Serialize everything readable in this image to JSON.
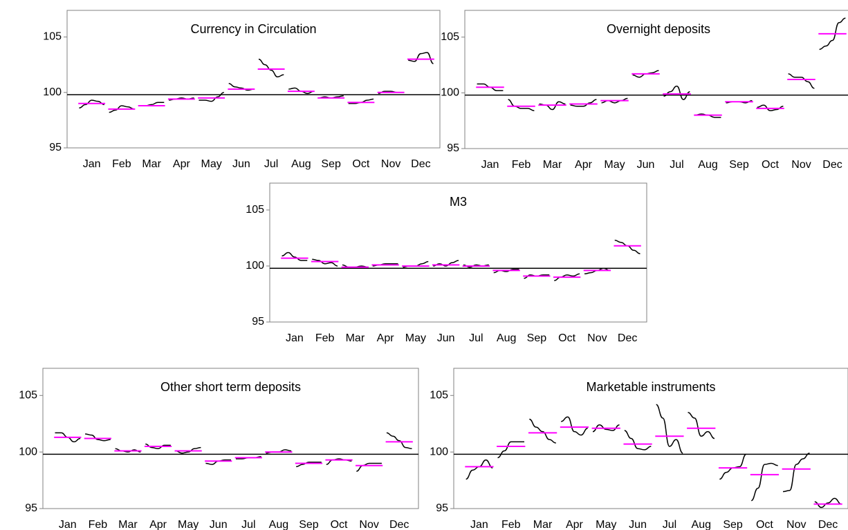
{
  "chart_data": [
    {
      "type": "line",
      "title": "Currency in Circulation",
      "ylim": [
        95,
        107.4
      ],
      "yticks": [
        95,
        100,
        105
      ],
      "reference_line": 99.8,
      "mean_color": "#ff00ff",
      "line_color": "#000000",
      "categories": [
        "Jan",
        "Feb",
        "Mar",
        "Apr",
        "May",
        "Jun",
        "Jul",
        "Aug",
        "Sep",
        "Oct",
        "Nov",
        "Dec"
      ],
      "mean_values": [
        99.0,
        98.5,
        98.8,
        99.4,
        99.5,
        100.3,
        102.1,
        100.1,
        99.5,
        99.1,
        100.0,
        103.0
      ],
      "monthly_values": [
        [
          98.6,
          98.9,
          99.3,
          99.2,
          98.9
        ],
        [
          98.2,
          98.4,
          98.8,
          98.7,
          98.5
        ],
        [
          98.8,
          98.8,
          98.9,
          99.1,
          99.1
        ],
        [
          99.3,
          99.4,
          99.5,
          99.4,
          99.5
        ],
        [
          99.3,
          99.3,
          99.2,
          99.6,
          100.0
        ],
        [
          100.8,
          100.5,
          100.4,
          100.2,
          100.3
        ],
        [
          103.0,
          102.5,
          102.0,
          101.4,
          101.6
        ],
        [
          100.3,
          100.4,
          100.1,
          99.9,
          100.1
        ],
        [
          99.5,
          99.6,
          99.5,
          99.6,
          99.7
        ],
        [
          99.0,
          99.0,
          99.1,
          99.3,
          99.4
        ],
        [
          99.9,
          100.1,
          100.1,
          100.0,
          100.0
        ],
        [
          102.9,
          102.8,
          103.5,
          103.6,
          102.6
        ]
      ]
    },
    {
      "type": "line",
      "title": "Overnight deposits",
      "ylim": [
        95,
        107.4
      ],
      "yticks": [
        95,
        100,
        105
      ],
      "reference_line": 99.8,
      "mean_color": "#ff00ff",
      "line_color": "#000000",
      "categories": [
        "Jan",
        "Feb",
        "Mar",
        "Apr",
        "May",
        "Jun",
        "Jul",
        "Aug",
        "Sep",
        "Oct",
        "Nov",
        "Dec"
      ],
      "mean_values": [
        100.5,
        98.8,
        98.9,
        99.0,
        99.3,
        101.7,
        99.9,
        98.0,
        99.2,
        98.6,
        101.2,
        105.3
      ],
      "monthly_values": [
        [
          100.8,
          100.8,
          100.5,
          100.2,
          100.2
        ],
        [
          99.4,
          98.8,
          98.6,
          98.6,
          98.4
        ],
        [
          99.0,
          98.9,
          98.5,
          99.2,
          99.0
        ],
        [
          98.9,
          98.8,
          98.8,
          99.1,
          99.4
        ],
        [
          99.1,
          99.3,
          99.1,
          99.3,
          99.5
        ],
        [
          101.6,
          101.4,
          101.7,
          101.8,
          102.0
        ],
        [
          99.7,
          100.1,
          100.6,
          99.4,
          100.1
        ],
        [
          98.0,
          98.1,
          98.0,
          97.8,
          97.8
        ],
        [
          99.1,
          99.2,
          99.2,
          99.1,
          99.3
        ],
        [
          98.7,
          98.9,
          98.4,
          98.5,
          98.8
        ],
        [
          101.7,
          101.4,
          101.4,
          101.0,
          100.4
        ],
        [
          103.9,
          104.2,
          104.7,
          106.3,
          106.7
        ]
      ]
    },
    {
      "type": "line",
      "title": "M3",
      "ylim": [
        95,
        107.4
      ],
      "yticks": [
        95,
        100,
        105
      ],
      "reference_line": 99.8,
      "mean_color": "#ff00ff",
      "line_color": "#000000",
      "categories": [
        "Jan",
        "Feb",
        "Mar",
        "Apr",
        "May",
        "Jun",
        "Jul",
        "Aug",
        "Sep",
        "Oct",
        "Nov",
        "Dec"
      ],
      "mean_values": [
        100.7,
        100.4,
        99.9,
        100.1,
        100.0,
        100.1,
        100.0,
        99.6,
        99.1,
        99.0,
        99.6,
        101.8
      ],
      "monthly_values": [
        [
          100.9,
          101.2,
          100.8,
          100.5,
          100.5
        ],
        [
          100.6,
          100.5,
          100.2,
          100.3,
          100.0
        ],
        [
          100.1,
          99.9,
          99.9,
          100.0,
          99.9
        ],
        [
          100.0,
          100.1,
          100.2,
          100.2,
          100.2
        ],
        [
          99.9,
          100.0,
          100.0,
          100.2,
          100.4
        ],
        [
          100.0,
          100.2,
          100.0,
          100.3,
          100.5
        ],
        [
          100.1,
          99.9,
          100.1,
          100.0,
          100.1
        ],
        [
          99.4,
          99.6,
          99.5,
          99.7,
          99.7
        ],
        [
          98.9,
          99.2,
          99.1,
          99.2,
          99.2
        ],
        [
          98.7,
          99.0,
          99.2,
          99.1,
          99.3
        ],
        [
          99.3,
          99.4,
          99.6,
          99.8,
          99.6
        ],
        [
          102.3,
          102.1,
          101.8,
          101.4,
          101.1
        ]
      ]
    },
    {
      "type": "line",
      "title": "Other short term deposits",
      "ylim": [
        95,
        107.4
      ],
      "yticks": [
        95,
        100,
        105
      ],
      "reference_line": 99.8,
      "mean_color": "#ff00ff",
      "line_color": "#000000",
      "categories": [
        "Jan",
        "Feb",
        "Mar",
        "Apr",
        "May",
        "Jun",
        "Jul",
        "Aug",
        "Sep",
        "Oct",
        "Nov",
        "Dec"
      ],
      "mean_values": [
        101.3,
        101.2,
        100.1,
        100.5,
        100.1,
        99.2,
        99.5,
        100.0,
        99.0,
        99.3,
        98.8,
        100.9
      ],
      "monthly_values": [
        [
          101.7,
          101.7,
          101.3,
          100.9,
          101.2
        ],
        [
          101.6,
          101.5,
          101.1,
          101.0,
          101.1
        ],
        [
          100.3,
          100.1,
          100.0,
          100.2,
          100.0
        ],
        [
          100.7,
          100.4,
          100.3,
          100.6,
          100.6
        ],
        [
          100.1,
          99.9,
          100.0,
          100.3,
          100.4
        ],
        [
          99.0,
          98.9,
          99.2,
          99.3,
          99.3
        ],
        [
          99.4,
          99.4,
          99.5,
          99.5,
          99.6
        ],
        [
          99.9,
          100.0,
          100.0,
          100.2,
          100.1
        ],
        [
          98.7,
          98.9,
          99.1,
          99.1,
          99.1
        ],
        [
          98.9,
          99.3,
          99.4,
          99.3,
          99.2
        ],
        [
          98.3,
          98.8,
          99.0,
          99.0,
          99.0
        ],
        [
          101.7,
          101.4,
          101.0,
          100.4,
          100.3
        ]
      ]
    },
    {
      "type": "line",
      "title": "Marketable instruments",
      "ylim": [
        95,
        107.4
      ],
      "yticks": [
        95,
        100,
        105
      ],
      "reference_line": 99.8,
      "mean_color": "#ff00ff",
      "line_color": "#000000",
      "categories": [
        "Jan",
        "Feb",
        "Mar",
        "Apr",
        "May",
        "Jun",
        "Jul",
        "Aug",
        "Sep",
        "Oct",
        "Nov",
        "Dec"
      ],
      "mean_values": [
        98.7,
        100.5,
        101.7,
        102.2,
        102.1,
        100.7,
        101.4,
        102.1,
        98.6,
        98.0,
        98.5,
        95.4
      ],
      "monthly_values": [
        [
          97.6,
          98.4,
          98.7,
          99.3,
          98.6
        ],
        [
          99.5,
          100.1,
          100.9,
          100.9,
          100.9
        ],
        [
          102.9,
          102.2,
          101.8,
          101.1,
          100.8
        ],
        [
          102.7,
          103.1,
          101.8,
          101.5,
          102.1
        ],
        [
          101.8,
          102.4,
          102.0,
          101.9,
          102.4
        ],
        [
          101.9,
          101.2,
          100.3,
          100.2,
          100.5
        ],
        [
          104.2,
          103.0,
          100.5,
          101.1,
          99.9
        ],
        [
          103.5,
          103.0,
          101.4,
          101.8,
          101.2
        ],
        [
          97.6,
          98.2,
          98.6,
          98.7,
          99.8
        ],
        [
          95.7,
          96.8,
          98.9,
          99.0,
          98.8
        ],
        [
          96.5,
          96.6,
          98.9,
          99.4,
          99.9
        ],
        [
          95.6,
          95.1,
          95.5,
          95.9,
          95.4
        ]
      ]
    }
  ]
}
